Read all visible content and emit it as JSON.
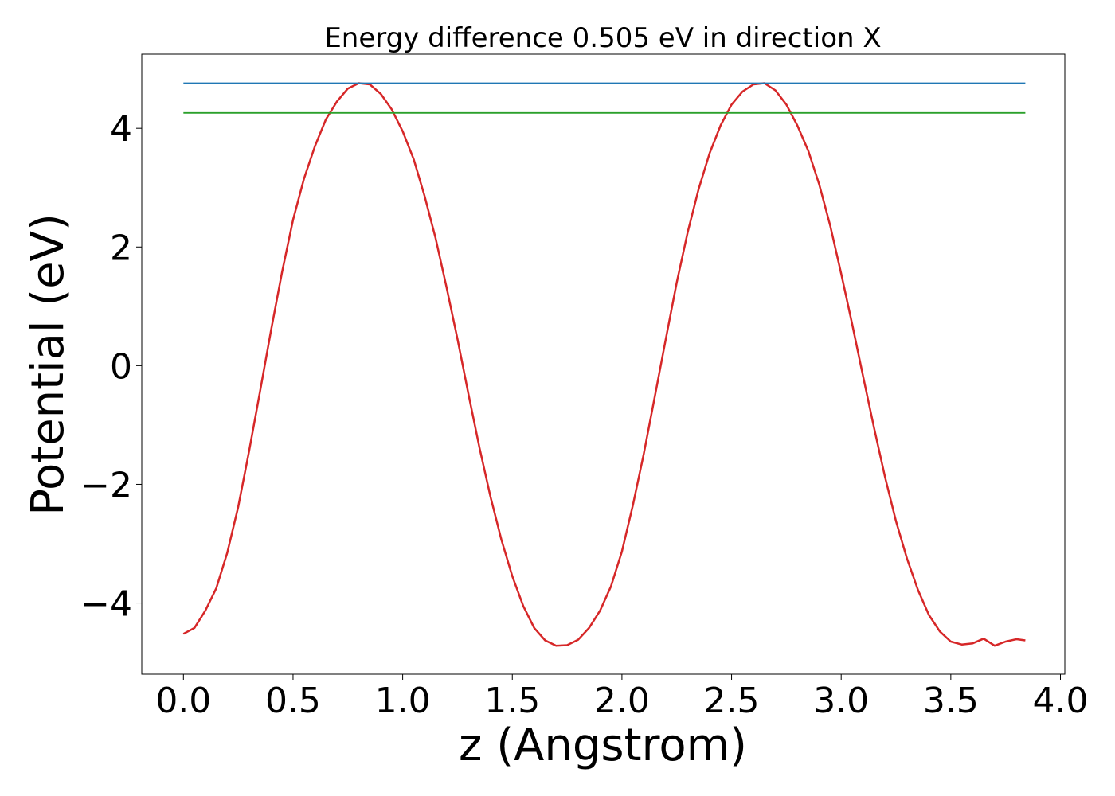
{
  "chart_data": {
    "type": "line",
    "title": "Energy difference 0.505 eV in direction X",
    "xlabel": "z (Angstrom)",
    "ylabel": "Potential (eV)",
    "xlim": [
      -0.19,
      4.02
    ],
    "ylim": [
      -5.2,
      5.25
    ],
    "xticks": [
      0.0,
      0.5,
      1.0,
      1.5,
      2.0,
      2.5,
      3.0,
      3.5,
      4.0
    ],
    "xtick_labels": [
      "0.0",
      "0.5",
      "1.0",
      "1.5",
      "2.0",
      "2.5",
      "3.0",
      "3.5",
      "4.0"
    ],
    "yticks": [
      -4,
      -2,
      0,
      2,
      4
    ],
    "ytick_labels": [
      "−4",
      "−2",
      "0",
      "2",
      "4"
    ],
    "grid": false,
    "legend": "none",
    "series": [
      {
        "color": "#d62728",
        "style": "line",
        "x": [
          0.0,
          0.05,
          0.1,
          0.15,
          0.2,
          0.25,
          0.3,
          0.35,
          0.4,
          0.45,
          0.5,
          0.55,
          0.6,
          0.65,
          0.7,
          0.75,
          0.8,
          0.85,
          0.9,
          0.95,
          1.0,
          1.05,
          1.1,
          1.15,
          1.2,
          1.25,
          1.3,
          1.35,
          1.4,
          1.45,
          1.5,
          1.55,
          1.6,
          1.65,
          1.7,
          1.75,
          1.8,
          1.85,
          1.9,
          1.95,
          2.0,
          2.05,
          2.1,
          2.15,
          2.2,
          2.25,
          2.3,
          2.35,
          2.4,
          2.45,
          2.5,
          2.55,
          2.6,
          2.65,
          2.7,
          2.75,
          2.8,
          2.85,
          2.9,
          2.95,
          3.0,
          3.05,
          3.1,
          3.15,
          3.2,
          3.25,
          3.3,
          3.35,
          3.4,
          3.45,
          3.5,
          3.55,
          3.6,
          3.65,
          3.7,
          3.75,
          3.8,
          3.84
        ],
        "y": [
          -4.52,
          -4.42,
          -4.13,
          -3.75,
          -3.15,
          -2.38,
          -1.43,
          -0.42,
          0.6,
          1.58,
          2.46,
          3.15,
          3.7,
          4.15,
          4.45,
          4.67,
          4.76,
          4.74,
          4.58,
          4.32,
          3.95,
          3.48,
          2.86,
          2.15,
          1.32,
          0.45,
          -0.48,
          -1.38,
          -2.2,
          -2.93,
          -3.55,
          -4.05,
          -4.42,
          -4.63,
          -4.72,
          -4.71,
          -4.62,
          -4.42,
          -4.13,
          -3.72,
          -3.13,
          -2.35,
          -1.48,
          -0.52,
          0.45,
          1.4,
          2.25,
          2.98,
          3.58,
          4.05,
          4.4,
          4.62,
          4.74,
          4.76,
          4.64,
          4.4,
          4.05,
          3.62,
          3.05,
          2.36,
          1.55,
          0.7,
          -0.18,
          -1.05,
          -1.88,
          -2.62,
          -3.25,
          -3.78,
          -4.2,
          -4.48,
          -4.65,
          -4.7,
          -4.68,
          -4.6,
          -4.72,
          -4.65,
          -4.61,
          -4.63
        ]
      },
      {
        "color": "#1f77b4",
        "style": "line",
        "x": [
          0.0,
          3.84
        ],
        "y": [
          4.76,
          4.76
        ]
      },
      {
        "color": "#2ca02c",
        "style": "line",
        "x": [
          0.0,
          3.84
        ],
        "y": [
          4.26,
          4.26
        ]
      }
    ],
    "colors": {
      "axes": "#000000",
      "background": "#ffffff"
    }
  }
}
